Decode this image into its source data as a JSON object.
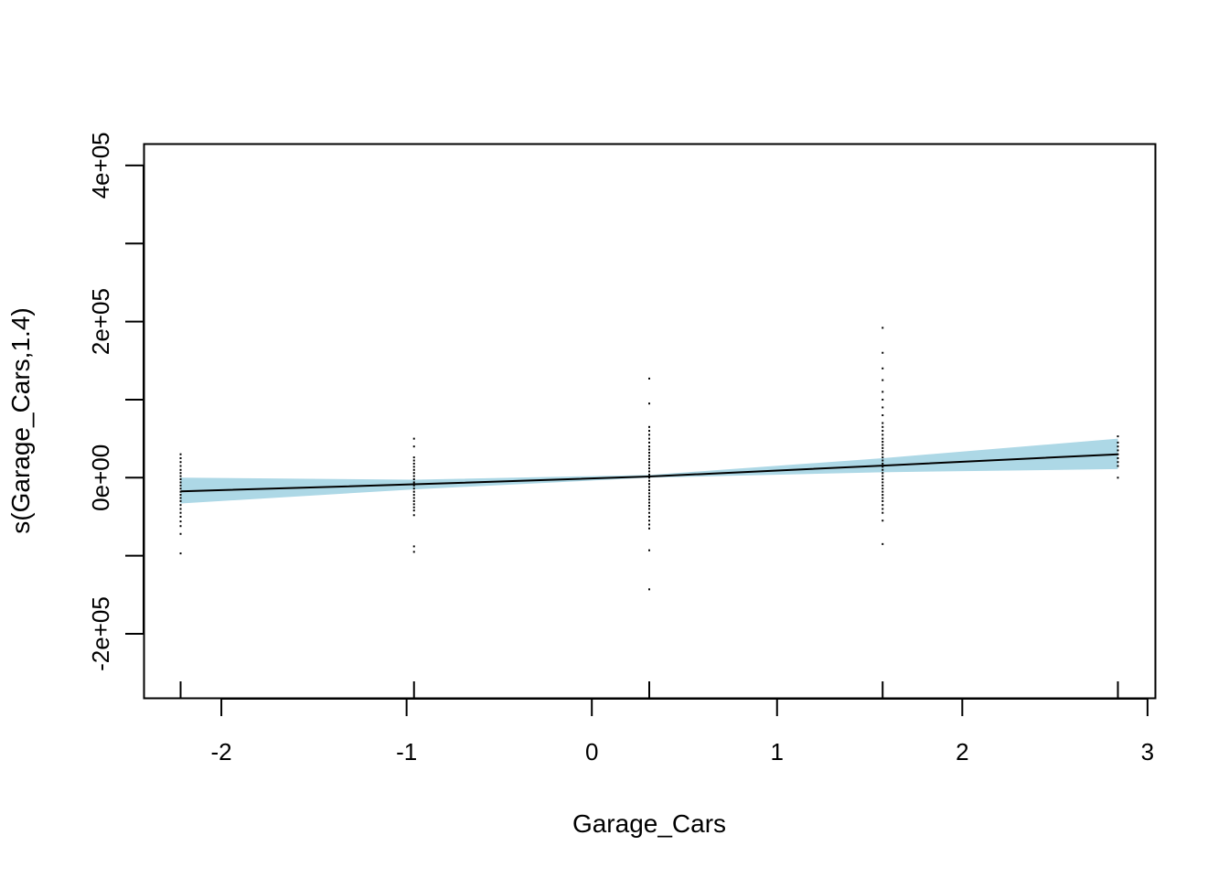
{
  "chart_data": {
    "type": "line",
    "title": "",
    "xlabel": "Garage_Cars",
    "ylabel": "s(Garage_Cars,1.4)",
    "xlim": [
      -2.42,
      3.04
    ],
    "ylim": [
      -282000,
      428000
    ],
    "x_ticks": [
      {
        "value": -2,
        "label": "-2"
      },
      {
        "value": -1,
        "label": "-1"
      },
      {
        "value": 0,
        "label": "0"
      },
      {
        "value": 1,
        "label": "1"
      },
      {
        "value": 2,
        "label": "2"
      },
      {
        "value": 3,
        "label": "3"
      }
    ],
    "y_ticks": [
      {
        "value": -200000,
        "label": "-2e+05"
      },
      {
        "value": -100000,
        "label": ""
      },
      {
        "value": 0,
        "label": "0e+00"
      },
      {
        "value": 100000,
        "label": ""
      },
      {
        "value": 200000,
        "label": "2e+05"
      },
      {
        "value": 300000,
        "label": ""
      },
      {
        "value": 400000,
        "label": "4e+05"
      }
    ],
    "rug_x": [
      -2.22,
      -0.96,
      0.31,
      1.57,
      2.84
    ],
    "series": [
      {
        "type": "smooth",
        "color": "#000000",
        "x": [
          -2.22,
          -0.96,
          0.31,
          1.57,
          2.84
        ],
        "y": [
          -17500,
          -8500,
          1500,
          15500,
          30000
        ]
      }
    ],
    "confidence_band": {
      "color": "#add8e6",
      "x": [
        -2.22,
        -0.96,
        0.31,
        1.57,
        2.84
      ],
      "lower": [
        -33000,
        -15000,
        0,
        7000,
        11000
      ],
      "upper": [
        0,
        -2500,
        3500,
        25000,
        50000
      ]
    },
    "partial_residuals": [
      {
        "x": -2.22,
        "y": [
          30000,
          25000,
          20000,
          15000,
          10000,
          6000,
          2000,
          -2000,
          -6000,
          -10000,
          -14000,
          -18000,
          -22000,
          -26000,
          -30000,
          -35000,
          -40000,
          -45000,
          -50000,
          -56000,
          -62000,
          -72000,
          -97000
        ]
      },
      {
        "x": -0.96,
        "y": [
          50000,
          40000,
          26000,
          22000,
          18000,
          14000,
          10000,
          6000,
          2000,
          -2000,
          -6000,
          -10000,
          -14000,
          -18000,
          -22000,
          -26000,
          -30000,
          -34000,
          -38000,
          -42000,
          -48000,
          -88000,
          -95000
        ]
      },
      {
        "x": 0.31,
        "y": [
          127000,
          95000,
          65000,
          60000,
          55000,
          50000,
          45000,
          40000,
          36000,
          32000,
          28000,
          24000,
          20000,
          16000,
          12000,
          8000,
          4000,
          0,
          -4000,
          -8000,
          -12000,
          -16000,
          -20000,
          -24000,
          -28000,
          -32000,
          -36000,
          -40000,
          -45000,
          -50000,
          -55000,
          -60000,
          -65000,
          -93000,
          -143000
        ]
      },
      {
        "x": 1.57,
        "y": [
          192000,
          160000,
          140000,
          125000,
          110000,
          100000,
          90000,
          80000,
          70000,
          65000,
          60000,
          55000,
          50000,
          46000,
          42000,
          38000,
          34000,
          30000,
          26000,
          22000,
          18000,
          14000,
          10000,
          6000,
          2000,
          -2000,
          -6000,
          -10000,
          -14000,
          -18000,
          -22000,
          -26000,
          -30000,
          -35000,
          -40000,
          -45000,
          -55000,
          -85000
        ]
      },
      {
        "x": 2.84,
        "y": [
          53000,
          45000,
          40000,
          35000,
          30000,
          25000,
          20000,
          15000,
          0
        ]
      }
    ]
  }
}
